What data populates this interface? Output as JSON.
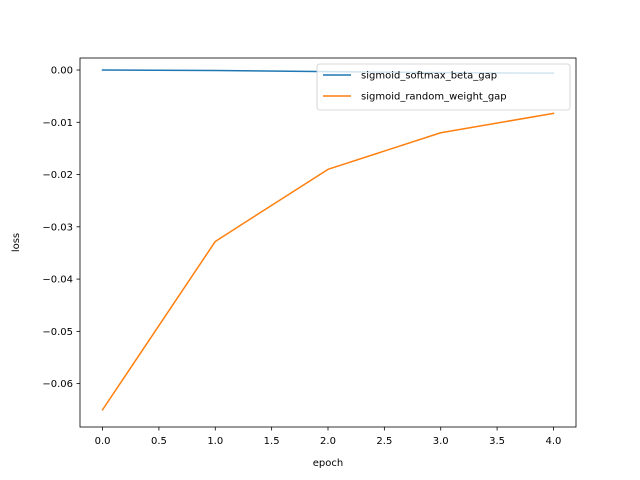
{
  "chart_data": {
    "type": "line",
    "title": "",
    "xlabel": "epoch",
    "ylabel": "loss",
    "x": [
      0,
      1,
      2,
      3,
      4
    ],
    "xlim": [
      -0.2,
      4.2
    ],
    "ylim": [
      -0.0683,
      0.0023
    ],
    "x_ticks": [
      0.0,
      0.5,
      1.0,
      1.5,
      2.0,
      2.5,
      3.0,
      3.5,
      4.0
    ],
    "x_tick_labels": [
      "0.0",
      "0.5",
      "1.0",
      "1.5",
      "2.0",
      "2.5",
      "3.0",
      "3.5",
      "4.0"
    ],
    "y_ticks": [
      0.0,
      -0.01,
      -0.02,
      -0.03,
      -0.04,
      -0.05,
      -0.06
    ],
    "y_tick_labels": [
      "0.00",
      "−0.01",
      "−0.02",
      "−0.03",
      "−0.04",
      "−0.05",
      "−0.06"
    ],
    "grid": false,
    "legend_position": "top-right",
    "series": [
      {
        "name": "sigmoid_softmax_beta_gap",
        "color": "#1f77b4",
        "values": [
          0.0,
          -0.0001,
          -0.0003,
          -0.0005,
          -0.0006
        ]
      },
      {
        "name": "sigmoid_random_weight_gap",
        "color": "#ff7f0e",
        "values": [
          -0.065,
          -0.0328,
          -0.019,
          -0.012,
          -0.0083
        ]
      }
    ]
  }
}
